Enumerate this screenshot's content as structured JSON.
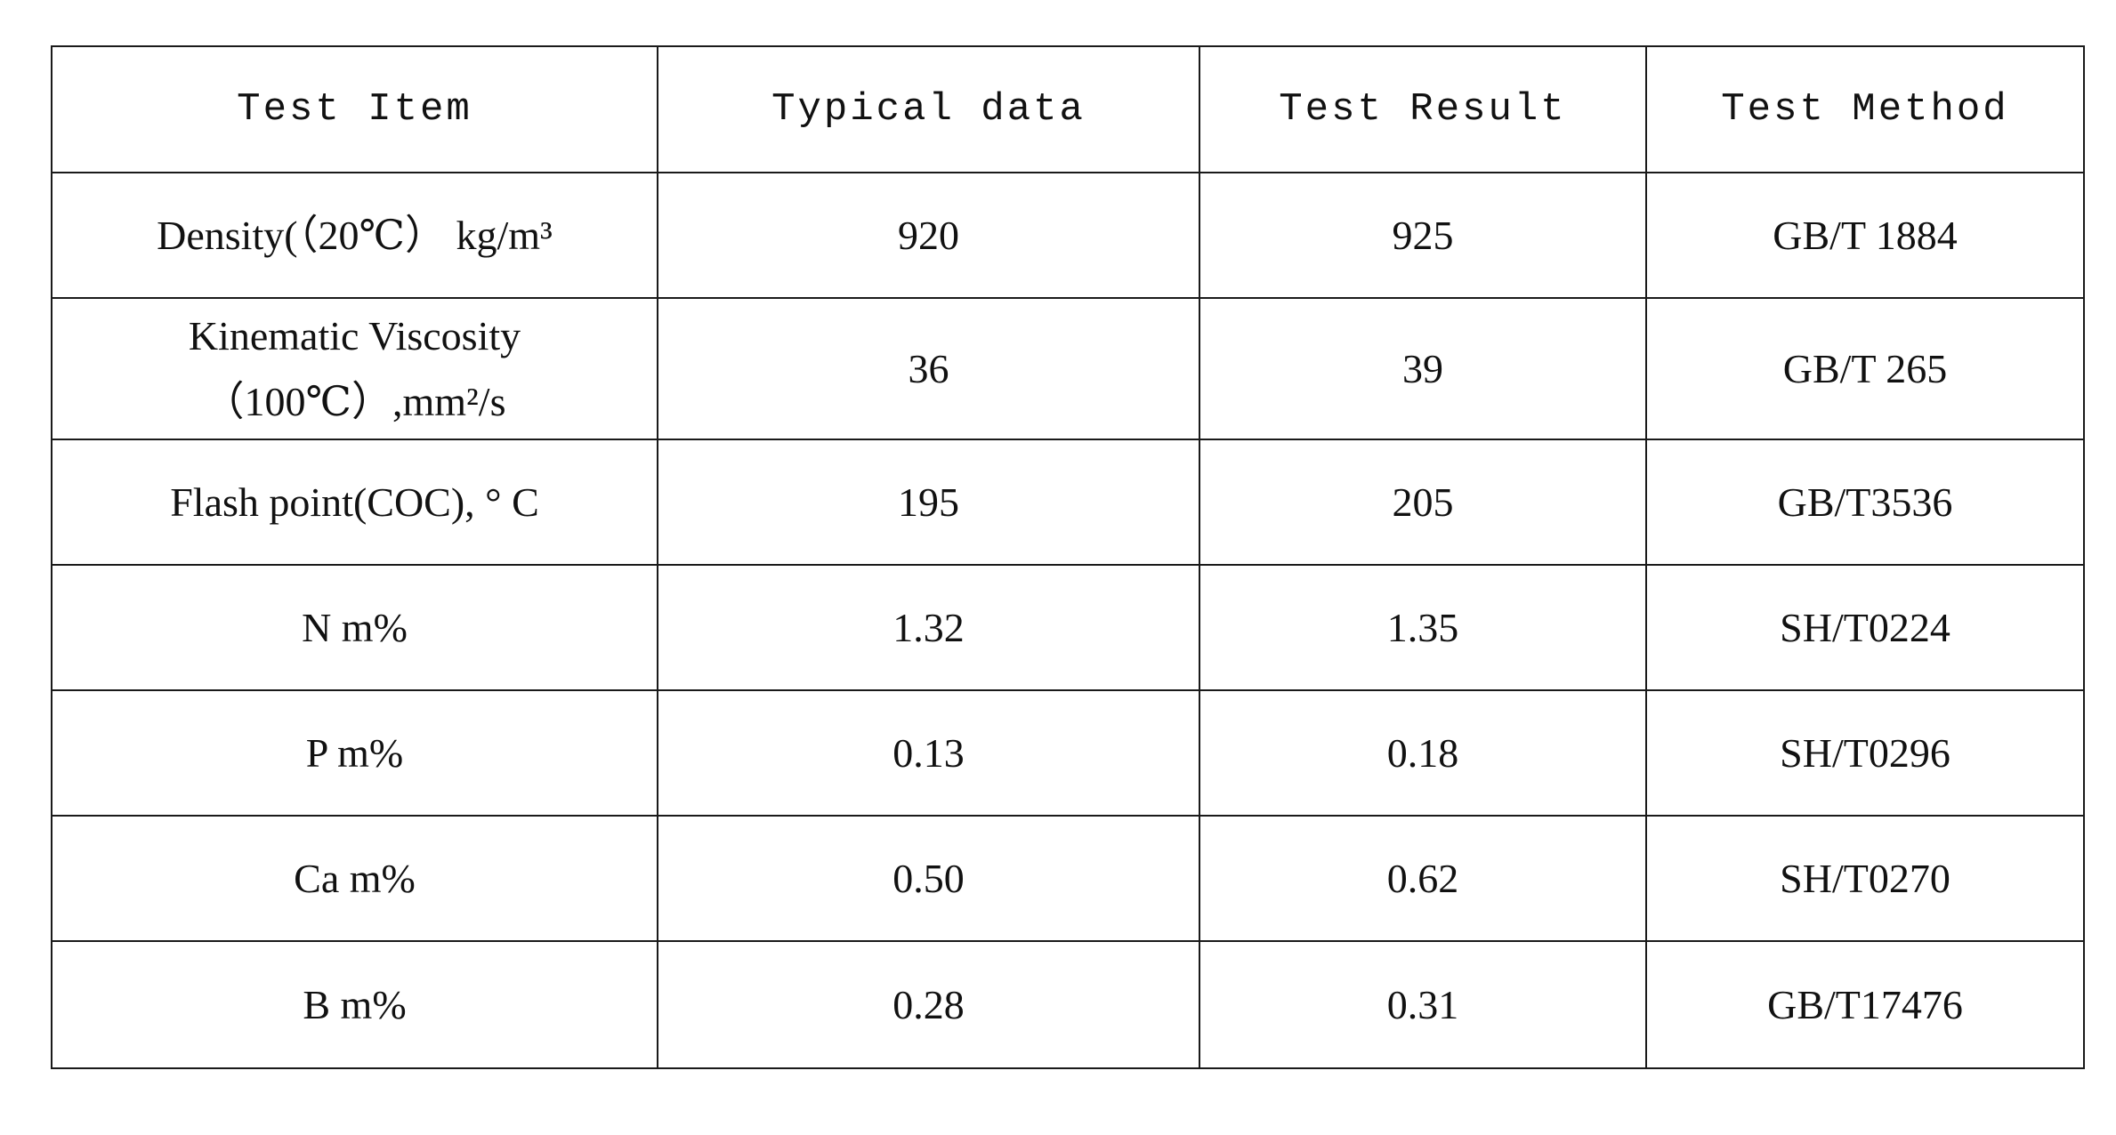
{
  "table": {
    "header": [
      "Test Item",
      "Typical data",
      "Test Result",
      "Test Method"
    ],
    "rows": [
      [
        "Density(（20℃） kg/m³",
        "920",
        "925",
        "GB/T 1884"
      ],
      [
        "Kinematic Viscosity\n（100℃）,mm²/s",
        "36",
        "39",
        "GB/T 265"
      ],
      [
        "Flash point(COC), ° C",
        "195",
        "205",
        "GB/T3536"
      ],
      [
        "N m%",
        "1.32",
        "1.35",
        "SH/T0224"
      ],
      [
        "P m%",
        "0.13",
        "0.18",
        "SH/T0296"
      ],
      [
        "Ca m%",
        "0.50",
        "0.62",
        "SH/T0270"
      ],
      [
        "B m%",
        "0.28",
        "0.31",
        "GB/T17476"
      ]
    ]
  }
}
